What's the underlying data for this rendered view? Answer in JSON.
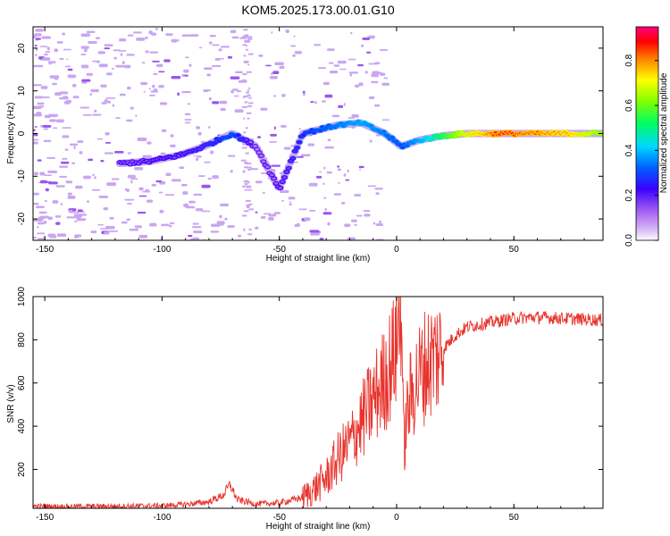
{
  "title": "KOM5.2025.173.00.01.G10",
  "colors": {
    "snr_line": "#e8332d",
    "speckle": "#c9a6f2"
  },
  "chart_data": [
    {
      "type": "heatmap",
      "xlabel": "Height of straight line (km)",
      "ylabel": "Frequency (Hz)",
      "xlim": [
        -155,
        88
      ],
      "ylim": [
        -25,
        25
      ],
      "x_ticks": [
        -150,
        -100,
        -50,
        0,
        50
      ],
      "y_ticks": [
        -20,
        -10,
        0,
        10,
        20
      ],
      "colorbar": {
        "label": "Normalized spectral amplitude",
        "range": [
          0,
          0.95
        ],
        "ticks": [
          0.0,
          0.2,
          0.4,
          0.6,
          0.8
        ],
        "colormap": "rainbow: lavender-purple-blue-cyan-green-yellow-orange-red-magenta"
      },
      "ridge": [
        {
          "x": -118,
          "y": -7,
          "amp": 0.08
        },
        {
          "x": -105,
          "y": -6.5,
          "amp": 0.1
        },
        {
          "x": -92,
          "y": -5,
          "amp": 0.12
        },
        {
          "x": -82,
          "y": -3,
          "amp": 0.15
        },
        {
          "x": -70,
          "y": 0,
          "amp": 0.25
        },
        {
          "x": -60,
          "y": -3,
          "amp": 0.05
        },
        {
          "x": -50,
          "y": -13,
          "amp": 0.1
        },
        {
          "x": -40,
          "y": 0,
          "amp": 0.2
        },
        {
          "x": -25,
          "y": 2,
          "amp": 0.3
        },
        {
          "x": -15,
          "y": 2.5,
          "amp": 0.35
        },
        {
          "x": -5,
          "y": 0,
          "amp": 0.3
        },
        {
          "x": 2,
          "y": -3,
          "amp": 0.25
        },
        {
          "x": 10,
          "y": -1.5,
          "amp": 0.35
        },
        {
          "x": 20,
          "y": -0.5,
          "amp": 0.55
        },
        {
          "x": 30,
          "y": 0,
          "amp": 0.75
        },
        {
          "x": 45,
          "y": 0,
          "amp": 0.9
        },
        {
          "x": 60,
          "y": 0,
          "amp": 0.85
        },
        {
          "x": 75,
          "y": 0,
          "amp": 0.8
        },
        {
          "x": 88,
          "y": 0,
          "amp": 0.65
        }
      ]
    },
    {
      "type": "line",
      "xlabel": "Height of straight line (km)",
      "ylabel": "SNR (v/v)",
      "xlim": [
        -155,
        88
      ],
      "ylim": [
        20,
        1000
      ],
      "x_ticks": [
        -150,
        -100,
        -50,
        0,
        50
      ],
      "y_ticks": [
        200,
        400,
        600,
        800,
        1000
      ],
      "series": [
        {
          "x": [
            -155,
            -140,
            -120,
            -100,
            -90,
            -80,
            -74,
            -71,
            -68,
            -60,
            -50,
            -40,
            -35,
            -30,
            -25,
            -20,
            -15,
            -10,
            -5,
            -2,
            0,
            1,
            2,
            3,
            5,
            8,
            12,
            16,
            20,
            25,
            30,
            40,
            50,
            60,
            70,
            80,
            88
          ],
          "values": [
            30,
            28,
            30,
            32,
            38,
            50,
            80,
            130,
            60,
            40,
            45,
            70,
            110,
            160,
            250,
            320,
            420,
            520,
            620,
            700,
            780,
            900,
            1000,
            300,
            500,
            600,
            680,
            720,
            760,
            820,
            860,
            880,
            900,
            905,
            900,
            895,
            890
          ]
        }
      ]
    }
  ]
}
